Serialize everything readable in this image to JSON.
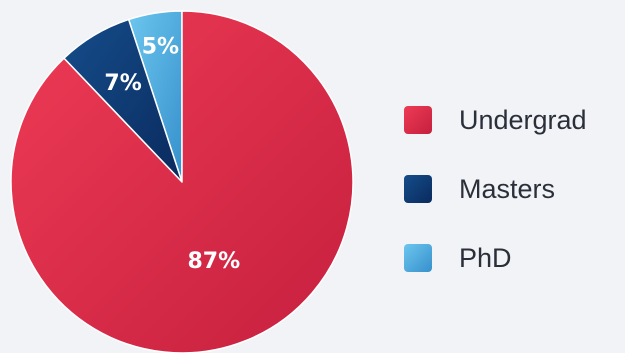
{
  "chart_data": {
    "type": "pie",
    "categories": [
      "Undergrad",
      "Masters",
      "PhD"
    ],
    "values": [
      87,
      7,
      5
    ],
    "data_labels": [
      "87%",
      "7%",
      "5%"
    ],
    "slice_order": [
      "PhD",
      "Masters",
      "Undergrad"
    ],
    "start_angle_deg": 0,
    "direction": "counterclockwise",
    "legend_position": "right",
    "colors": {
      "Undergrad": [
        "#ee3b55",
        "#c51f3e"
      ],
      "Masters": [
        "#154d8a",
        "#0a2a5e"
      ],
      "PhD": [
        "#6cc6ee",
        "#3690cc"
      ]
    },
    "title": "",
    "grid": false
  },
  "legend": {
    "items": [
      {
        "label": "Undergrad",
        "key": "Undergrad"
      },
      {
        "label": "Masters",
        "key": "Masters"
      },
      {
        "label": "PhD",
        "key": "PhD"
      }
    ]
  }
}
